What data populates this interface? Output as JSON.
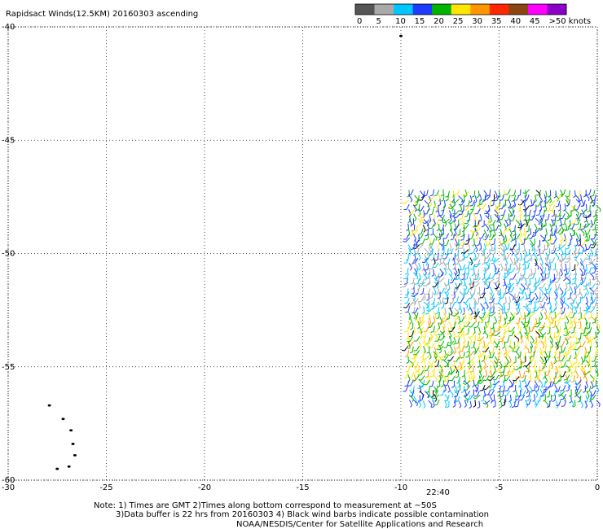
{
  "title": "Rapidsact Winds(12.5KM) 20160303 ascending",
  "legend": {
    "labels": [
      "0",
      "5",
      "10",
      "15",
      "20",
      "25",
      "30",
      "35",
      "40",
      "45",
      ">50 knots"
    ],
    "colors": [
      "#555555",
      "#aaaaaa",
      "#00c8ff",
      "#1e3cff",
      "#00b400",
      "#ffe600",
      "#ff9600",
      "#ff2800",
      "#8b4513",
      "#ff00ff",
      "#8c00c8"
    ]
  },
  "axes": {
    "x_ticks": [
      "-30",
      "-25",
      "-20",
      "-15",
      "-10",
      "-5",
      "0"
    ],
    "y_ticks": [
      "-40",
      "-45",
      "-50",
      "-55",
      "-60"
    ],
    "lon_range": [
      -30,
      0
    ],
    "lat_range": [
      -60,
      -40
    ],
    "grid": "dotted"
  },
  "time_label": "22:40",
  "time_label_color": "#990099",
  "notes": [
    "Note: 1) Times are GMT 2)Times along bottom correspond to measurement at ~50S",
    "3)Data buffer is 22 hrs from 20160303 4) Black wind barbs indicate possible contamination",
    "NOAA/NESDIS/Center for Satellite Applications and Research"
  ],
  "wind_swath": {
    "lon_range": [
      -9.6,
      0
    ],
    "lat_range": [
      -56.5,
      -47.2
    ],
    "speed_bands_knots": [
      {
        "lat_range": [
          -49.5,
          -47.2
        ],
        "speed_range": [
          15,
          27
        ]
      },
      {
        "lat_range": [
          -52.5,
          -49.5
        ],
        "speed_range": [
          6,
          17
        ]
      },
      {
        "lat_range": [
          -55.5,
          -52.5
        ],
        "speed_range": [
          20,
          32
        ]
      },
      {
        "lat_range": [
          -56.5,
          -55.5
        ],
        "speed_range": [
          12,
          22
        ]
      }
    ]
  },
  "islands": [
    {
      "lon": -10.0,
      "lat": -40.4
    },
    {
      "lon": -27.9,
      "lat": -56.7
    },
    {
      "lon": -27.2,
      "lat": -57.3
    },
    {
      "lon": -26.8,
      "lat": -57.8
    },
    {
      "lon": -26.7,
      "lat": -58.4
    },
    {
      "lon": -26.6,
      "lat": -58.9
    },
    {
      "lon": -26.9,
      "lat": -59.4
    },
    {
      "lon": -27.5,
      "lat": -59.5
    }
  ]
}
